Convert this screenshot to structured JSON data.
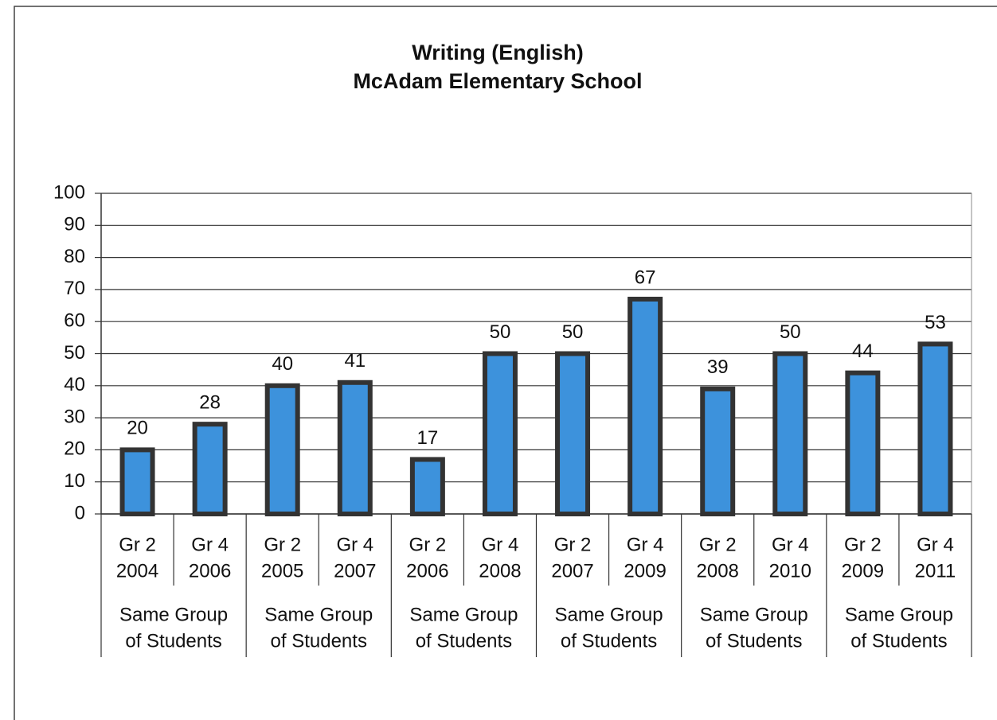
{
  "chart_data": {
    "type": "bar",
    "title": [
      "Writing (English)",
      "McAdam Elementary School"
    ],
    "categories": [
      [
        "Gr 2",
        "2004"
      ],
      [
        "Gr 4",
        "2006"
      ],
      [
        "Gr 2",
        "2005"
      ],
      [
        "Gr 4",
        "2007"
      ],
      [
        "Gr 2",
        "2006"
      ],
      [
        "Gr 4",
        "2008"
      ],
      [
        "Gr 2",
        "2007"
      ],
      [
        "Gr 4",
        "2009"
      ],
      [
        "Gr 2",
        "2008"
      ],
      [
        "Gr 4",
        "2010"
      ],
      [
        "Gr 2",
        "2009"
      ],
      [
        "Gr 4",
        "2011"
      ]
    ],
    "groups": [
      [
        "Same Group",
        "of Students"
      ],
      [
        "Same Group",
        "of Students"
      ],
      [
        "Same Group",
        "of Students"
      ],
      [
        "Same Group",
        "of Students"
      ],
      [
        "Same Group",
        "of Students"
      ],
      [
        "Same Group",
        "of Students"
      ]
    ],
    "values": [
      20,
      28,
      40,
      41,
      17,
      50,
      50,
      67,
      39,
      50,
      44,
      53
    ],
    "color": "#3d92dc",
    "ylim": [
      0,
      100
    ],
    "yticks": [
      0,
      10,
      20,
      30,
      40,
      50,
      60,
      70,
      80,
      90,
      100
    ],
    "grid": true
  }
}
